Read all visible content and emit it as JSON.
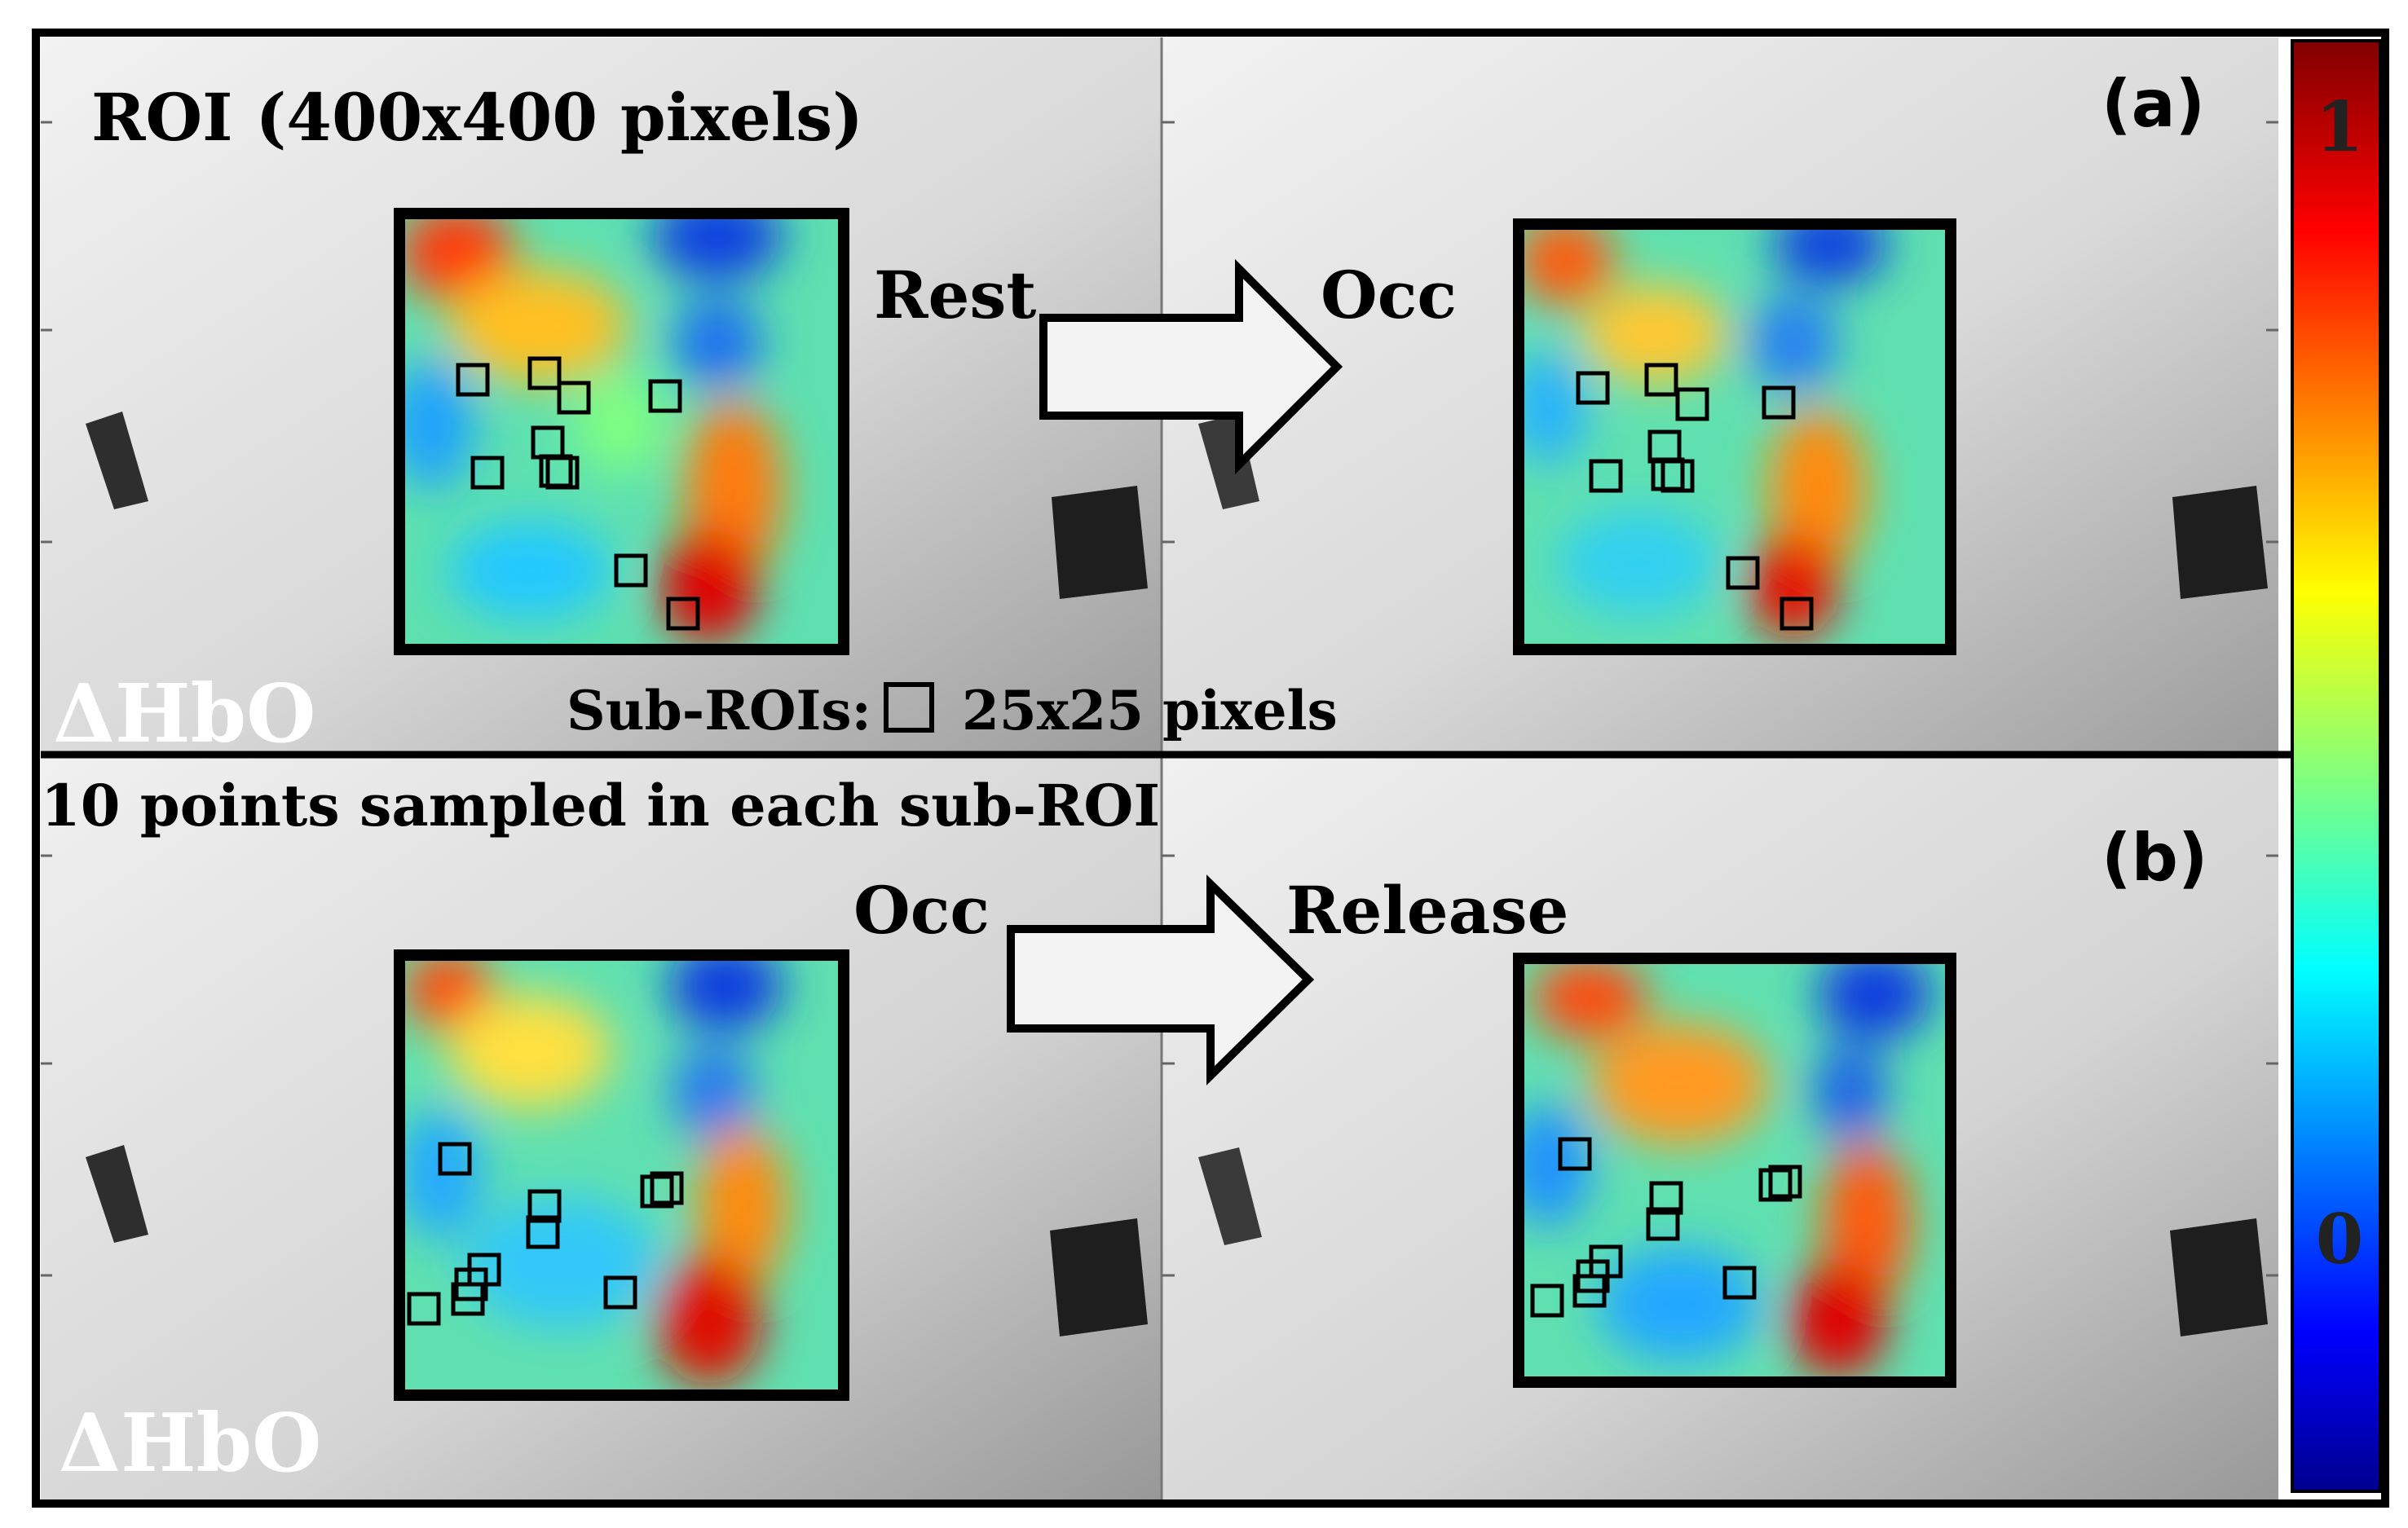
{
  "panel_a": {
    "roi_label": "ROI (400x400 pixels)",
    "tag": "(a)",
    "quantity_label": "ΔHbO",
    "from_label": "Rest",
    "to_label": "Occ",
    "legend_prefix": "Sub-ROIs:",
    "legend_suffix": "25x25 pixels"
  },
  "panel_b": {
    "sampling_note": "10 points sampled in each sub-ROI",
    "tag": "(b)",
    "quantity_label": "ΔHbO",
    "from_label": "Occ",
    "to_label": "Release"
  },
  "colorbar": {
    "max_label": "1",
    "min_label": "0",
    "colormap": [
      "#00008f",
      "#0000ff",
      "#00ffff",
      "#ffff00",
      "#ff0000",
      "#800000"
    ]
  }
}
